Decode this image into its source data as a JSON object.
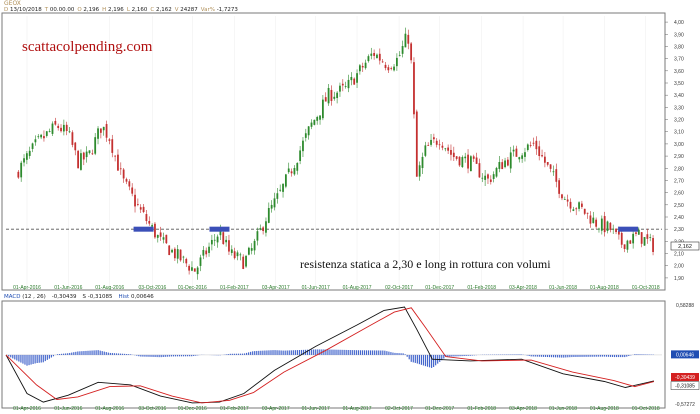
{
  "price_panel": {
    "ticker": "GEOX",
    "info": [
      {
        "label": "D",
        "value": "13/10/2018"
      },
      {
        "label": "T",
        "value": "00.00.00"
      },
      {
        "label": "O",
        "value": "2,196"
      },
      {
        "label": "H",
        "value": "2,196"
      },
      {
        "label": "L",
        "value": "2,160"
      },
      {
        "label": "C",
        "value": "2,162"
      },
      {
        "label": "V",
        "value": "24287"
      },
      {
        "label": "Var%",
        "value": "-1,7273"
      }
    ],
    "watermark": "scattacolpending.com",
    "annotation": "resistenza statica a 2,30 e long in rottura con volumi",
    "last_price_label": "2,162"
  },
  "macd_panel": {
    "header": [
      {
        "label": "MACD",
        "value": "(12 , 26)",
        "color": "#1f4db3"
      },
      {
        "label": "",
        "value": "-0,30439",
        "color": "#222222"
      },
      {
        "label": "S",
        "value": "-0,31085",
        "color": "#222222"
      },
      {
        "label": "Hist",
        "value": "0,00646",
        "color": "#1f4db3"
      }
    ],
    "y_labels": [
      {
        "v": 0.58288,
        "text": "0,58288"
      },
      {
        "v": 0.00646,
        "text": "0,00646"
      },
      {
        "v": -0.30439,
        "text": "-0,30439"
      },
      {
        "v": -0.31085,
        "text": "-0,31085"
      },
      {
        "v": -0.57272,
        "text": "-0,57272"
      }
    ]
  },
  "chart_data": [
    {
      "type": "candlestick",
      "title": "GEOX",
      "ylim": [
        1.85,
        4.05
      ],
      "y_ticks": [
        "1,90",
        "2,00",
        "2,10",
        "2,20",
        "2,30",
        "2,40",
        "2,50",
        "2,60",
        "2,70",
        "2,80",
        "2,90",
        "3,00",
        "3,10",
        "3,20",
        "3,30",
        "3,40",
        "3,50",
        "3,60",
        "3,70",
        "3,80",
        "3,90",
        "4,00"
      ],
      "x_ticks": [
        "01-Apr-2016",
        "01-Jun-2016",
        "01-Aug-2016",
        "03-Oct-2016",
        "01-Dec-2016",
        "01-Feb-2017",
        "03-Apr-2017",
        "01-Jun-2017",
        "01-Aug-2017",
        "02-Oct-2017",
        "01-Dec-2017",
        "01-Feb-2018",
        "03-Apr-2018",
        "01-Jun-2018",
        "01-Aug-2018",
        "01-Oct-2018"
      ],
      "close_path": [
        {
          "x": "2016-03-15",
          "y": 2.75
        },
        {
          "x": "2016-04-15",
          "y": 3.0
        },
        {
          "x": "2016-05-15",
          "y": 3.15
        },
        {
          "x": "2016-06-01",
          "y": 3.08
        },
        {
          "x": "2016-06-15",
          "y": 2.85
        },
        {
          "x": "2016-07-01",
          "y": 2.9
        },
        {
          "x": "2016-07-20",
          "y": 3.15
        },
        {
          "x": "2016-08-01",
          "y": 3.05
        },
        {
          "x": "2016-08-20",
          "y": 2.7
        },
        {
          "x": "2016-09-15",
          "y": 2.45
        },
        {
          "x": "2016-10-15",
          "y": 2.2
        },
        {
          "x": "2016-11-15",
          "y": 2.05
        },
        {
          "x": "2016-12-05",
          "y": 1.96
        },
        {
          "x": "2016-12-20",
          "y": 2.1
        },
        {
          "x": "2017-01-10",
          "y": 2.28
        },
        {
          "x": "2017-01-25",
          "y": 2.1
        },
        {
          "x": "2017-02-15",
          "y": 2.03
        },
        {
          "x": "2017-03-01",
          "y": 2.15
        },
        {
          "x": "2017-03-20",
          "y": 2.4
        },
        {
          "x": "2017-04-10",
          "y": 2.6
        },
        {
          "x": "2017-05-01",
          "y": 2.85
        },
        {
          "x": "2017-05-25",
          "y": 3.15
        },
        {
          "x": "2017-06-20",
          "y": 3.4
        },
        {
          "x": "2017-07-15",
          "y": 3.45
        },
        {
          "x": "2017-08-05",
          "y": 3.6
        },
        {
          "x": "2017-08-25",
          "y": 3.75
        },
        {
          "x": "2017-09-15",
          "y": 3.65
        },
        {
          "x": "2017-10-01",
          "y": 3.7
        },
        {
          "x": "2017-10-15",
          "y": 3.9
        },
        {
          "x": "2017-10-22",
          "y": 3.55
        },
        {
          "x": "2017-10-27",
          "y": 2.7
        },
        {
          "x": "2017-11-10",
          "y": 2.95
        },
        {
          "x": "2017-12-01",
          "y": 3.05
        },
        {
          "x": "2017-12-20",
          "y": 2.9
        },
        {
          "x": "2018-01-15",
          "y": 2.85
        },
        {
          "x": "2018-02-10",
          "y": 2.7
        },
        {
          "x": "2018-03-05",
          "y": 2.85
        },
        {
          "x": "2018-04-01",
          "y": 2.95
        },
        {
          "x": "2018-04-20",
          "y": 3.0
        },
        {
          "x": "2018-05-15",
          "y": 2.75
        },
        {
          "x": "2018-06-05",
          "y": 2.55
        },
        {
          "x": "2018-07-01",
          "y": 2.45
        },
        {
          "x": "2018-07-20",
          "y": 2.35
        },
        {
          "x": "2018-08-10",
          "y": 2.3
        },
        {
          "x": "2018-08-25",
          "y": 2.18
        },
        {
          "x": "2018-09-20",
          "y": 2.25
        },
        {
          "x": "2018-10-13",
          "y": 2.16
        }
      ],
      "resistance_level": 2.3,
      "resistance_markers": [
        {
          "x": "2016-09-20",
          "y": 2.3
        },
        {
          "x": "2017-01-10",
          "y": 2.3
        },
        {
          "x": "2018-09-05",
          "y": 2.3
        }
      ],
      "last_close": 2.162
    },
    {
      "type": "line",
      "title": "MACD",
      "ylim": [
        -0.57272,
        0.58288
      ],
      "x_ticks": [
        "01-Apr-2016",
        "01-Jun-2016",
        "01-Aug-2016",
        "03-Oct-2016",
        "01-Dec-2016",
        "01-Feb-2017",
        "03-Apr-2017",
        "01-Jun-2017",
        "01-Aug-2017",
        "02-Oct-2017",
        "01-Dec-2017",
        "01-Feb-2018",
        "03-Apr-2018",
        "01-Jun-2018",
        "01-Aug-2018",
        "01-Oct-2018"
      ],
      "series": [
        {
          "name": "MACD",
          "color": "#111111",
          "points": [
            {
              "x": "2016-03-01",
              "y": 0.0
            },
            {
              "x": "2016-04-01",
              "y": -0.45
            },
            {
              "x": "2016-04-25",
              "y": -0.55
            },
            {
              "x": "2016-06-01",
              "y": -0.47
            },
            {
              "x": "2016-07-15",
              "y": -0.32
            },
            {
              "x": "2016-09-01",
              "y": -0.35
            },
            {
              "x": "2016-10-15",
              "y": -0.48
            },
            {
              "x": "2016-12-01",
              "y": -0.56
            },
            {
              "x": "2017-01-10",
              "y": -0.55
            },
            {
              "x": "2017-02-15",
              "y": -0.45
            },
            {
              "x": "2017-04-01",
              "y": -0.18
            },
            {
              "x": "2017-06-01",
              "y": 0.1
            },
            {
              "x": "2017-08-01",
              "y": 0.35
            },
            {
              "x": "2017-09-10",
              "y": 0.52
            },
            {
              "x": "2017-10-10",
              "y": 0.56
            },
            {
              "x": "2017-10-28",
              "y": 0.3
            },
            {
              "x": "2017-11-20",
              "y": -0.05
            },
            {
              "x": "2018-01-15",
              "y": -0.07
            },
            {
              "x": "2018-04-01",
              "y": -0.05
            },
            {
              "x": "2018-06-01",
              "y": -0.22
            },
            {
              "x": "2018-08-01",
              "y": -0.31
            },
            {
              "x": "2018-09-01",
              "y": -0.38
            },
            {
              "x": "2018-10-13",
              "y": -0.30439
            }
          ]
        },
        {
          "name": "S",
          "color": "#d42020",
          "points": [
            {
              "x": "2016-03-01",
              "y": 0.0
            },
            {
              "x": "2016-04-15",
              "y": -0.35
            },
            {
              "x": "2016-05-15",
              "y": -0.52
            },
            {
              "x": "2016-06-15",
              "y": -0.49
            },
            {
              "x": "2016-08-01",
              "y": -0.37
            },
            {
              "x": "2016-09-15",
              "y": -0.36
            },
            {
              "x": "2016-11-01",
              "y": -0.48
            },
            {
              "x": "2016-12-15",
              "y": -0.56
            },
            {
              "x": "2017-01-25",
              "y": -0.53
            },
            {
              "x": "2017-03-01",
              "y": -0.44
            },
            {
              "x": "2017-04-15",
              "y": -0.2
            },
            {
              "x": "2017-06-15",
              "y": 0.05
            },
            {
              "x": "2017-08-15",
              "y": 0.32
            },
            {
              "x": "2017-09-25",
              "y": 0.5
            },
            {
              "x": "2017-10-20",
              "y": 0.55
            },
            {
              "x": "2017-11-10",
              "y": 0.32
            },
            {
              "x": "2017-12-10",
              "y": -0.02
            },
            {
              "x": "2018-02-01",
              "y": -0.07
            },
            {
              "x": "2018-04-15",
              "y": -0.06
            },
            {
              "x": "2018-06-15",
              "y": -0.2
            },
            {
              "x": "2018-08-15",
              "y": -0.3
            },
            {
              "x": "2018-09-15",
              "y": -0.37
            },
            {
              "x": "2018-10-13",
              "y": -0.31085
            }
          ]
        }
      ],
      "histogram_color": "#4466cc",
      "hist_last": 0.00646
    }
  ],
  "colors": {
    "up_candle": "#2d8a2d",
    "down_candle": "#c43030",
    "resistance_marker": "#3b4fb8",
    "watermark": "#b01010",
    "dashed_line": "#555555",
    "macd_label_box": "#1f4db3",
    "s_label_box": "#d42020"
  }
}
